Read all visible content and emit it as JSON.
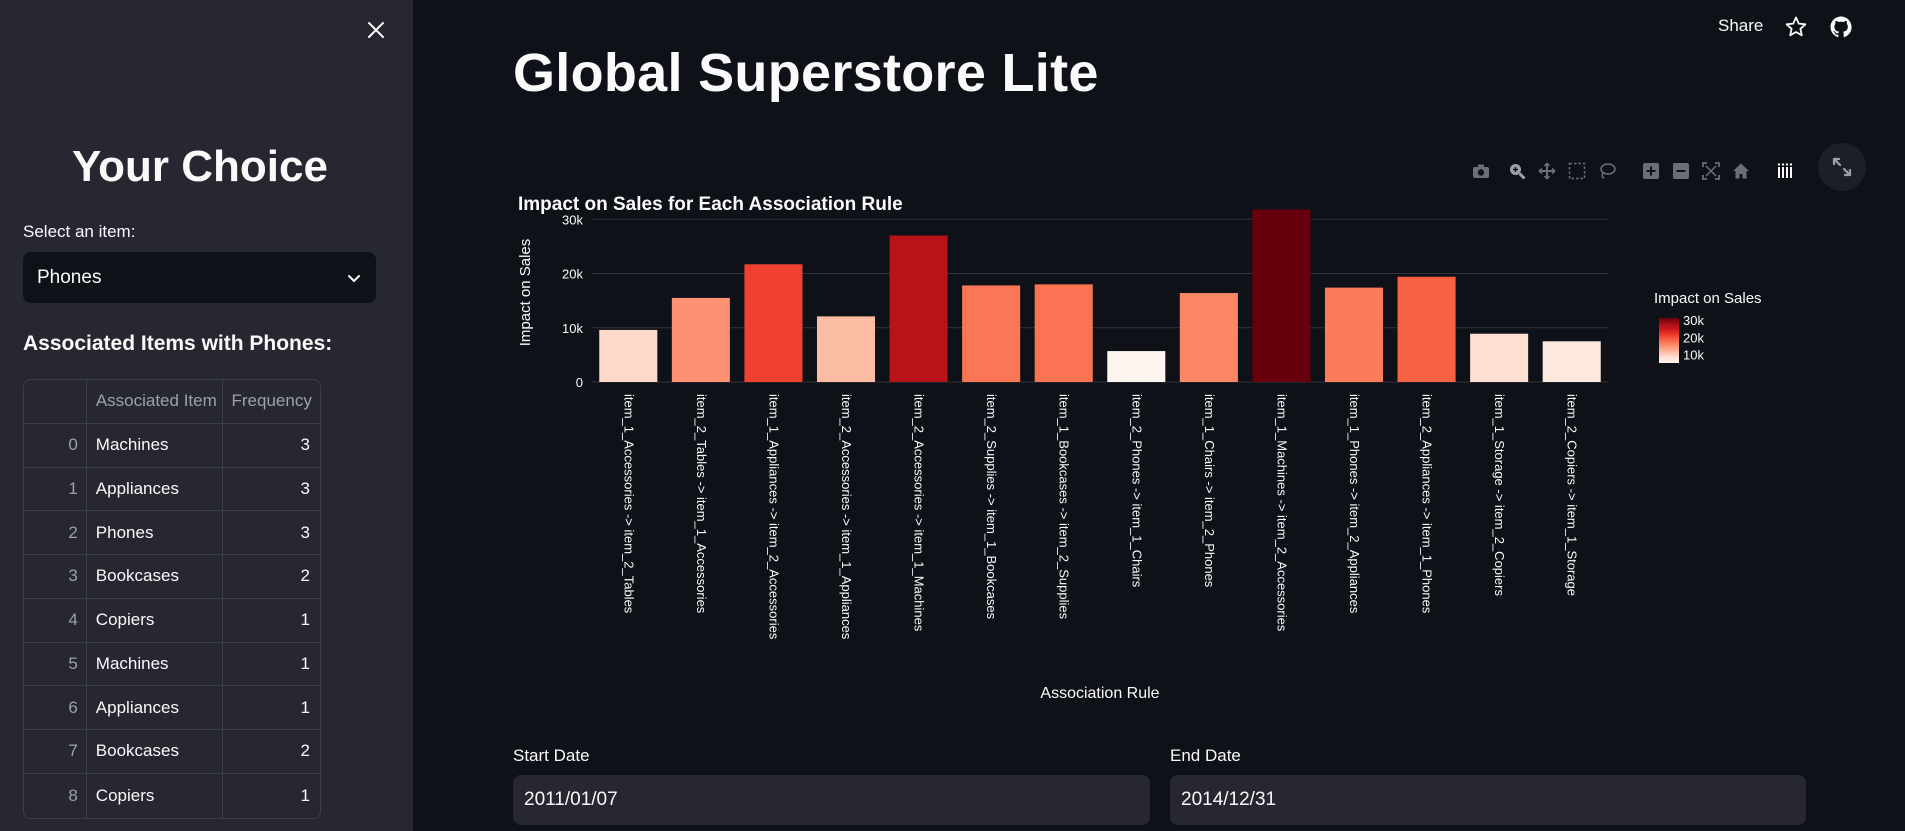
{
  "sidebar": {
    "title": "Your Choice",
    "select_label": "Select an item:",
    "select_value": "Phones",
    "assoc_title": "Associated Items with Phones:",
    "table": {
      "headers": [
        "",
        "Associated Item",
        "Frequency"
      ],
      "rows": [
        [
          "0",
          "Machines",
          "3"
        ],
        [
          "1",
          "Appliances",
          "3"
        ],
        [
          "2",
          "Phones",
          "3"
        ],
        [
          "3",
          "Bookcases",
          "2"
        ],
        [
          "4",
          "Copiers",
          "1"
        ],
        [
          "5",
          "Machines",
          "1"
        ],
        [
          "6",
          "Appliances",
          "1"
        ],
        [
          "7",
          "Bookcases",
          "2"
        ],
        [
          "8",
          "Copiers",
          "1"
        ]
      ]
    }
  },
  "header": {
    "share_label": "Share"
  },
  "main": {
    "title": "Global Superstore Lite",
    "start_date_label": "Start Date",
    "start_date_value": "2011/01/07",
    "end_date_label": "End Date",
    "end_date_value": "2014/12/31"
  },
  "chart_data": {
    "type": "bar",
    "title": "Impact on Sales for Each Association Rule",
    "xlabel": "Association Rule",
    "ylabel": "Impact on Sales",
    "ylim": [
      0,
      33000
    ],
    "yticks": [
      0,
      10000,
      20000,
      30000
    ],
    "ytick_labels": [
      "0",
      "10k",
      "20k",
      "30k"
    ],
    "grid": true,
    "colorbar": {
      "title": "Impact on Sales",
      "tick_labels": [
        "30k",
        "20k",
        "10k"
      ],
      "colorscale": "Reds",
      "cmin": 5700,
      "cmax": 31800
    },
    "categories": [
      "item_1_Accessories -> item_2_Tables",
      "item_2_Tables -> item_1_Accessories",
      "item_1_Appliances -> item_2_Accessories",
      "item_2_Accessories -> item_1_Appliances",
      "item_2_Accessories -> item_1_Machines",
      "item_2_Supplies -> item_1_Bookcases",
      "item_1_Bookcases -> item_2_Supplies",
      "item_2_Phones -> item_1_Chairs",
      "item_1_Chairs -> item_2_Phones",
      "item_1_Machines -> item_2_Accessories",
      "item_1_Phones -> item_2_Appliances",
      "item_2_Appliances -> item_1_Phones",
      "item_1_Storage -> item_2_Copiers",
      "item_2_Copiers -> item_1_Storage"
    ],
    "values": [
      9600,
      15500,
      21700,
      12100,
      27000,
      17800,
      18000,
      5700,
      16400,
      31800,
      17400,
      19400,
      8900,
      7500
    ]
  }
}
